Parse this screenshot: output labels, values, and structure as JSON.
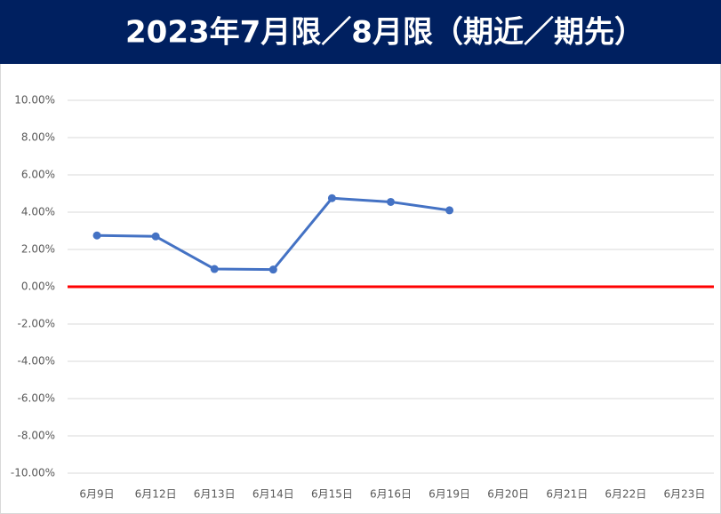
{
  "chart_data": {
    "type": "line",
    "title": "2023年7月限／8月限（期近／期先）",
    "categories": [
      "6月9日",
      "6月12日",
      "6月13日",
      "6月14日",
      "6月15日",
      "6月16日",
      "6月19日",
      "6月20日",
      "6月21日",
      "6月22日",
      "6月23日"
    ],
    "values": [
      2.75,
      2.7,
      0.95,
      0.92,
      4.75,
      4.55,
      4.1,
      null,
      null,
      null,
      null
    ],
    "color": "#4472c4",
    "ylim": [
      -10,
      10
    ],
    "yticks": [
      {
        "value": 10,
        "label": "10.00%"
      },
      {
        "value": 8,
        "label": "8.00%"
      },
      {
        "value": 6,
        "label": "6.00%"
      },
      {
        "value": 4,
        "label": "4.00%"
      },
      {
        "value": 2,
        "label": "2.00%"
      },
      {
        "value": 0,
        "label": "0.00%"
      },
      {
        "value": -2,
        "label": "-2.00%"
      },
      {
        "value": -4,
        "label": "-4.00%"
      },
      {
        "value": -6,
        "label": "-6.00%"
      },
      {
        "value": -8,
        "label": "-8.00%"
      },
      {
        "value": -10,
        "label": "-10.00%"
      }
    ],
    "grid": true,
    "reference_line": {
      "value": 0,
      "color": "#ff0000"
    }
  }
}
